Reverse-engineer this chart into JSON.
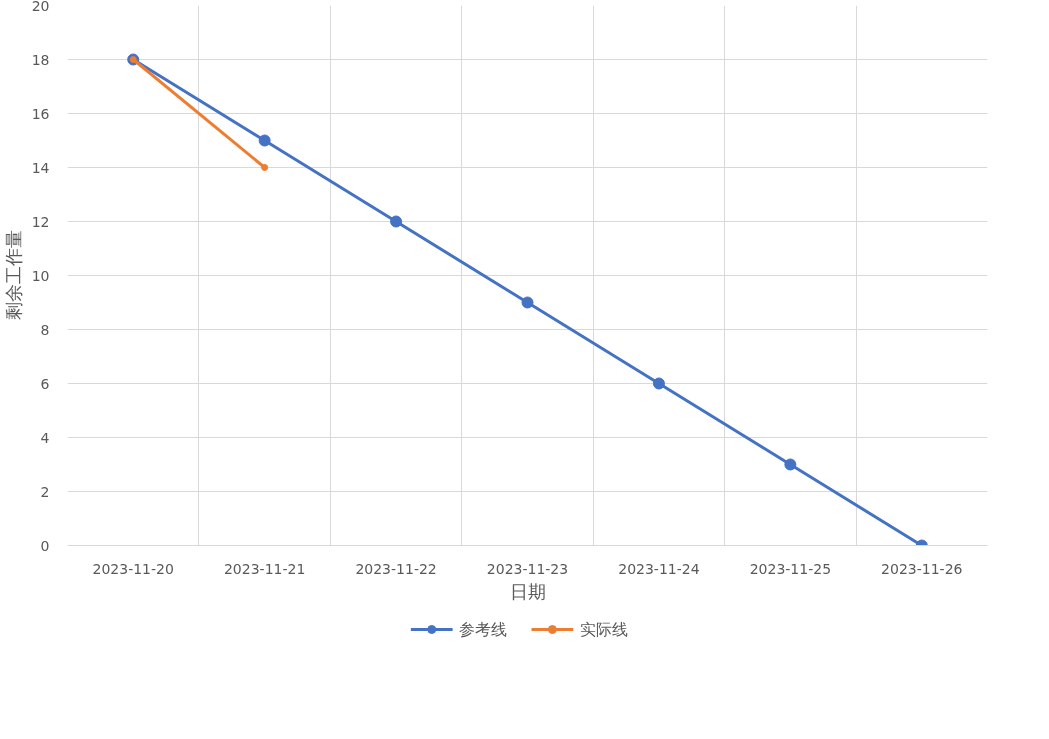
{
  "chart_data": {
    "type": "line",
    "xlabel": "日期",
    "ylabel": "剩余工作量",
    "categories": [
      "2023-11-20",
      "2023-11-21",
      "2023-11-22",
      "2023-11-23",
      "2023-11-24",
      "2023-11-25",
      "2023-11-26"
    ],
    "series": [
      {
        "name": "参考线",
        "color": "#4472c4",
        "values": [
          18,
          15,
          12,
          9,
          6,
          3,
          0
        ]
      },
      {
        "name": "实际线",
        "color": "#ed7d31",
        "values": [
          18,
          14,
          null,
          null,
          null,
          null,
          null
        ]
      }
    ],
    "ylim": [
      0,
      20
    ],
    "yticks": [
      0,
      2,
      4,
      6,
      8,
      10,
      12,
      14,
      16,
      18,
      20
    ],
    "grid": true,
    "legend": "bottom",
    "marker": "circle",
    "line_style": "solid"
  }
}
